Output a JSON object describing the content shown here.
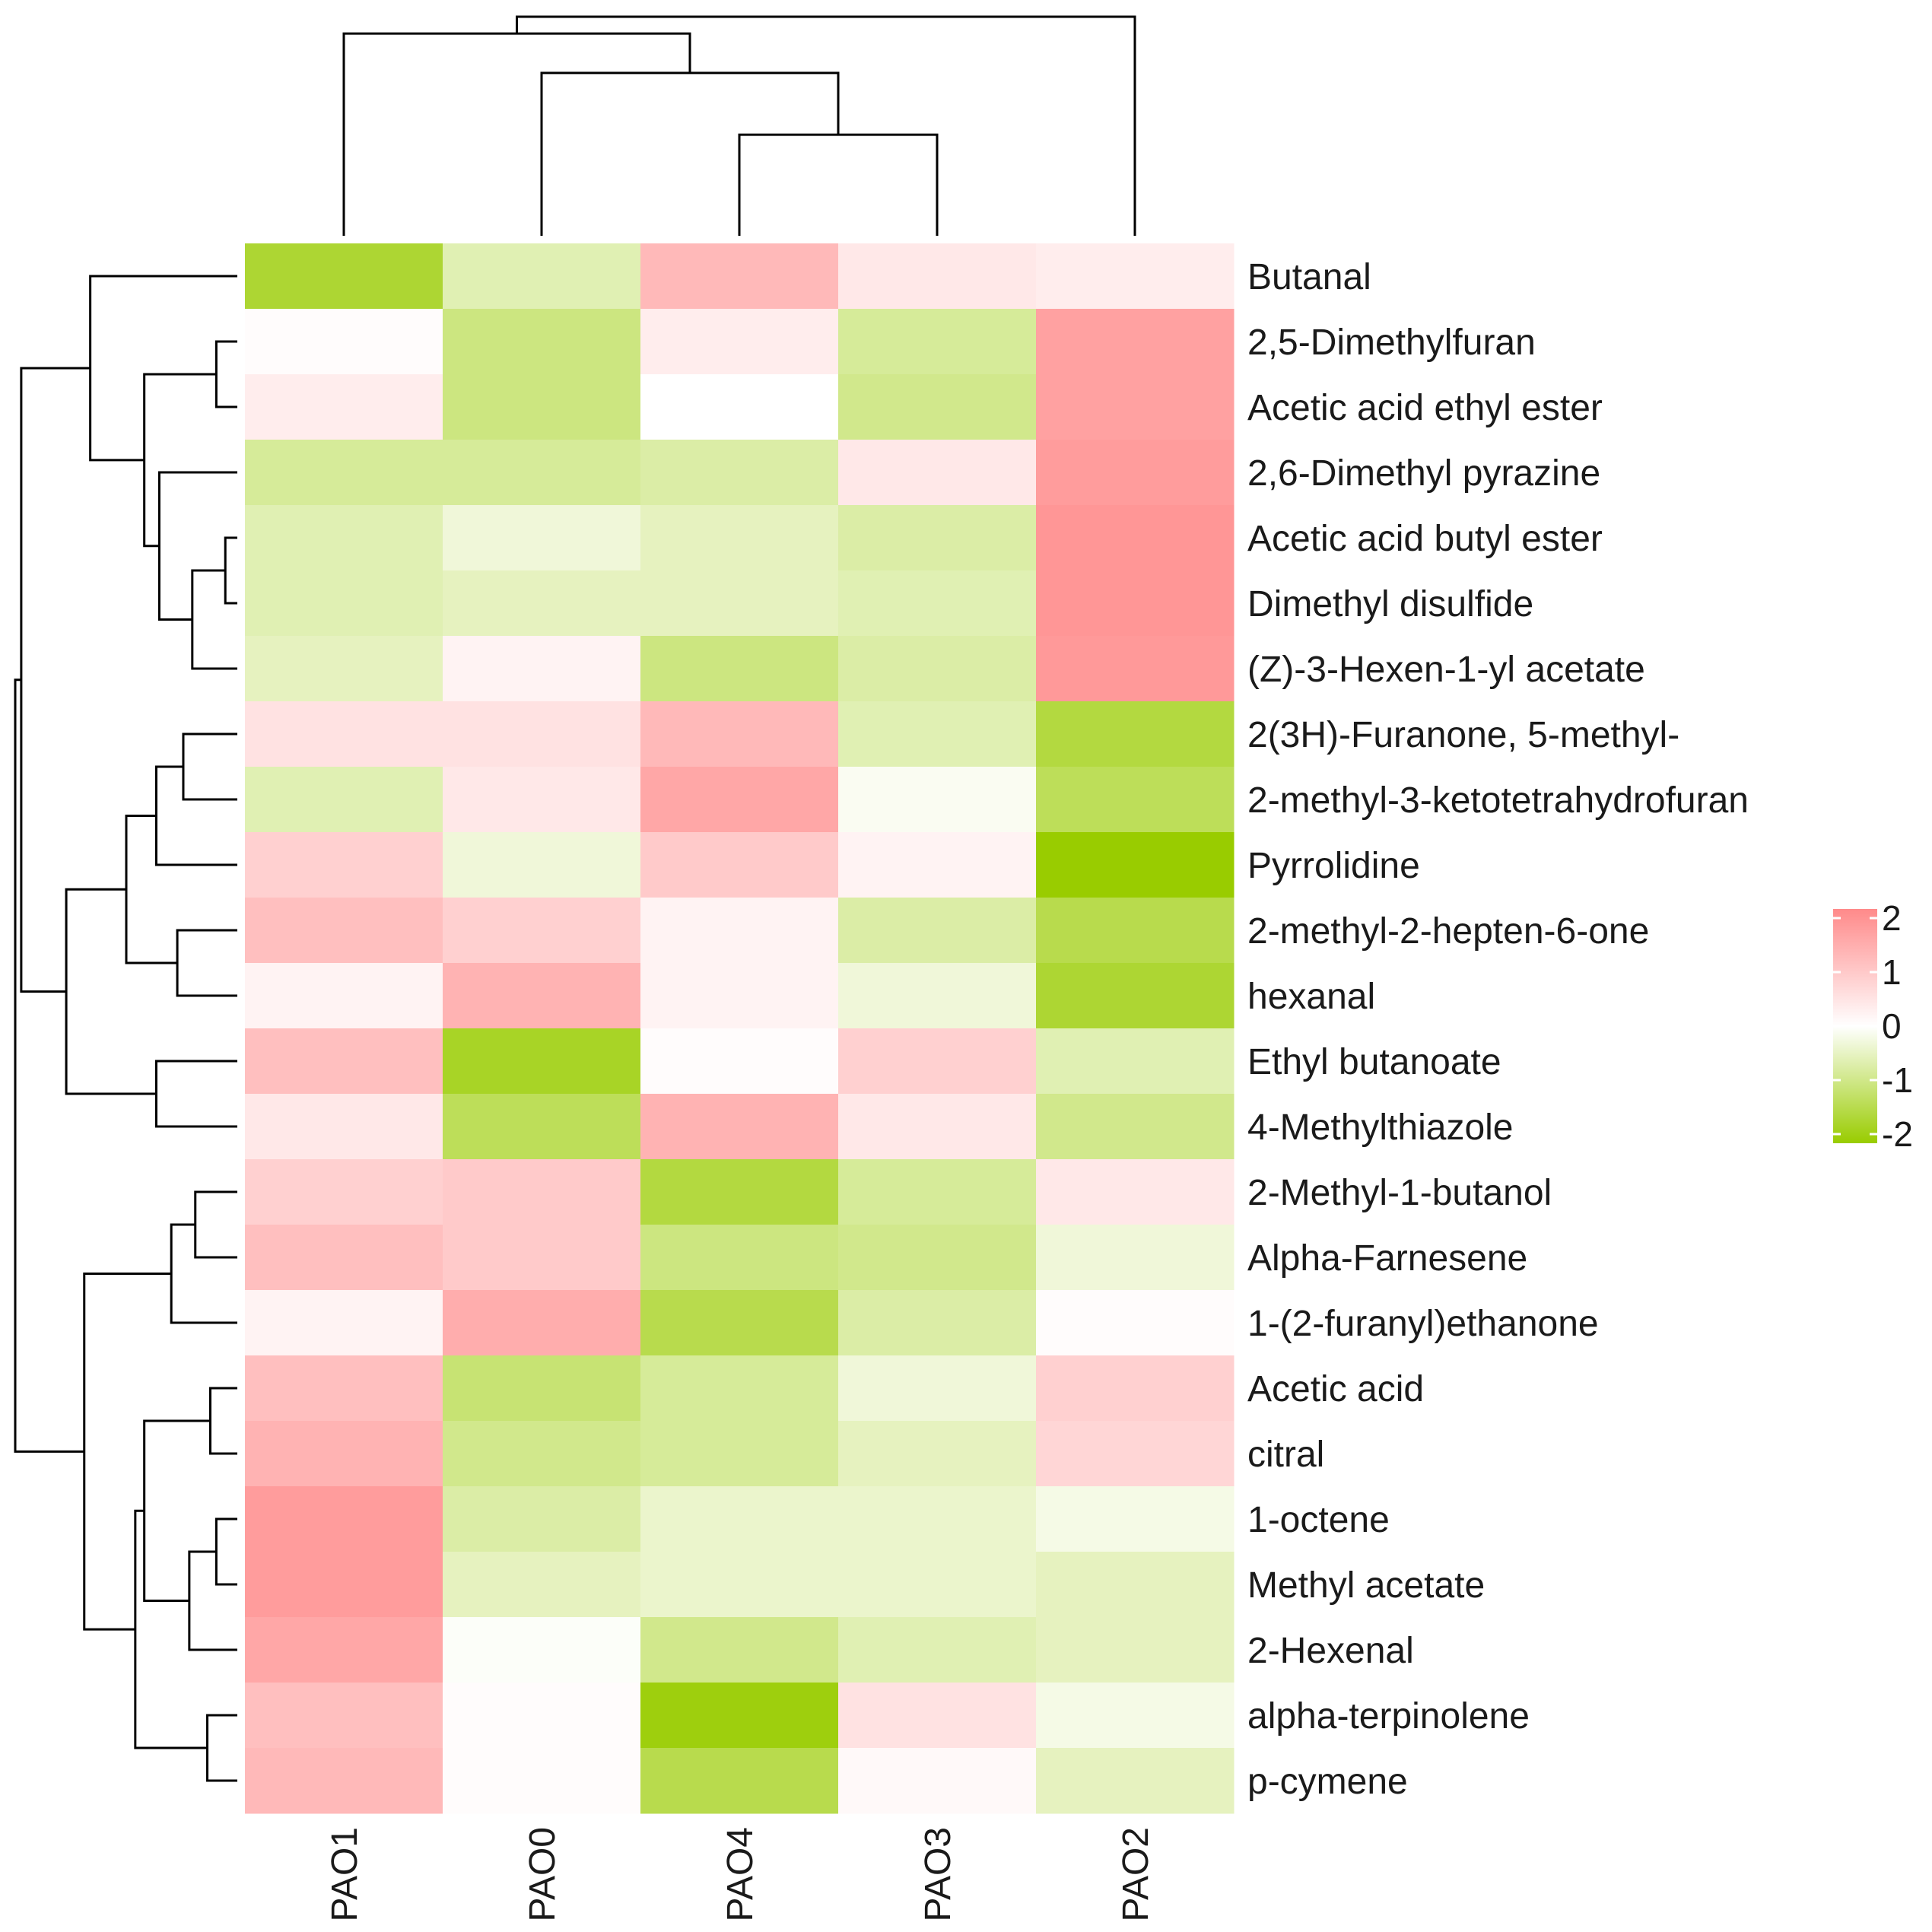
{
  "chart_data": {
    "type": "heatmap",
    "title": "",
    "columns": [
      "PAO1",
      "PAO0",
      "PAO4",
      "PAO3",
      "PAO2"
    ],
    "rows": [
      "Butanal",
      "2,5-Dimethylfuran",
      "Acetic acid ethyl ester",
      "2,6-Dimethyl pyrazine",
      "Acetic acid butyl ester",
      "Dimethyl disulfide",
      "(Z)-3-Hexen-1-yl acetate",
      "2(3H)-Furanone, 5-methyl-",
      "2-methyl-3-ketotetrahydrofuran",
      "Pyrrolidine",
      "2-methyl-2-hepten-6-one",
      "hexanal",
      "Ethyl butanoate",
      "4-Methylthiazole",
      "2-Methyl-1-butanol",
      "Alpha-Farnesene",
      "1-(2-furanyl)ethanone",
      "Acetic acid",
      "citral",
      "1-octene",
      "Methyl acetate",
      "2-Hexenal",
      "alpha-terpinolene",
      "p-cymene"
    ],
    "values": [
      [
        -1.6,
        -0.6,
        1.2,
        0.4,
        0.3
      ],
      [
        0.05,
        -1.0,
        0.3,
        -0.8,
        1.6
      ],
      [
        0.3,
        -1.0,
        0.0,
        -0.9,
        1.6
      ],
      [
        -0.8,
        -0.8,
        -0.7,
        0.4,
        1.7
      ],
      [
        -0.6,
        -0.3,
        -0.5,
        -0.7,
        1.8
      ],
      [
        -0.6,
        -0.5,
        -0.5,
        -0.6,
        1.8
      ],
      [
        -0.5,
        0.2,
        -1.0,
        -0.7,
        1.75
      ],
      [
        0.5,
        0.5,
        1.2,
        -0.6,
        -1.5
      ],
      [
        -0.6,
        0.4,
        1.5,
        -0.1,
        -1.3
      ],
      [
        0.8,
        -0.3,
        0.9,
        0.2,
        -2.0
      ],
      [
        1.1,
        0.8,
        0.2,
        -0.7,
        -1.4
      ],
      [
        0.2,
        1.3,
        0.2,
        -0.3,
        -1.6
      ],
      [
        1.1,
        -1.7,
        0.05,
        0.8,
        -0.6
      ],
      [
        0.4,
        -1.3,
        1.3,
        0.4,
        -0.9
      ],
      [
        0.8,
        0.9,
        -1.5,
        -0.8,
        0.4
      ],
      [
        1.1,
        0.9,
        -1.0,
        -0.9,
        -0.3
      ],
      [
        0.2,
        1.4,
        -1.4,
        -0.7,
        0.05
      ],
      [
        1.1,
        -1.1,
        -0.8,
        -0.3,
        0.8
      ],
      [
        1.3,
        -0.9,
        -0.8,
        -0.5,
        0.7
      ],
      [
        1.7,
        -0.7,
        -0.4,
        -0.4,
        -0.2
      ],
      [
        1.7,
        -0.5,
        -0.4,
        -0.4,
        -0.5
      ],
      [
        1.5,
        -0.05,
        -0.9,
        -0.6,
        -0.5
      ],
      [
        1.1,
        0.05,
        -1.9,
        0.5,
        -0.2
      ],
      [
        1.2,
        0.05,
        -1.4,
        0.1,
        -0.5
      ]
    ],
    "color_scale": {
      "min": -2,
      "max": 2,
      "low_color": "#99cc00",
      "mid_color": "#ffffff",
      "high_color": "#ff8a8a"
    },
    "legend": {
      "position": "right",
      "ticks": [
        {
          "value": 2,
          "label": "2"
        },
        {
          "value": 1,
          "label": "1"
        },
        {
          "value": 0,
          "label": "0"
        },
        {
          "value": -1,
          "label": "-1"
        },
        {
          "value": -2,
          "label": "-2"
        }
      ]
    },
    "column_dendrogram": {
      "merges": [
        {
          "a": "PAO4",
          "b": "PAO3",
          "height": 1.8
        },
        {
          "a": "PAO0",
          "b": "PAO4+PAO3",
          "height": 2.9
        },
        {
          "a": "PAO1",
          "b": "PAO0+PAO4+PAO3",
          "height": 3.6
        },
        {
          "a": "PAO1+PAO0+PAO4+PAO3",
          "b": "PAO2",
          "height": 3.9
        }
      ]
    },
    "row_dendrogram": {
      "tree": [
        [
          [
            "Butanal",
            [
              [
                "2,5-Dimethylfuran",
                "Acetic acid ethyl ester"
              ],
              [
                "2,6-Dimethyl pyrazine",
                [
                  [
                    "Acetic acid butyl ester",
                    "Dimethyl disulfide"
                  ],
                  "(Z)-3-Hexen-1-yl acetate"
                ]
              ]
            ]
          ],
          [
            [
              [
                [
                  "2(3H)-Furanone, 5-methyl-",
                  "2-methyl-3-ketotetrahydrofuran"
                ],
                "Pyrrolidine"
              ],
              [
                "2-methyl-2-hepten-6-one",
                "hexanal"
              ]
            ],
            [
              "Ethyl butanoate",
              "4-Methylthiazole"
            ]
          ]
        ],
        [
          [
            [
              "2-Methyl-1-butanol",
              "Alpha-Farnesene"
            ],
            "1-(2-furanyl)ethanone"
          ],
          [
            [
              [
                "Acetic acid",
                "citral"
              ],
              [
                [
                  "1-octene",
                  "Methyl acetate"
                ],
                "2-Hexenal"
              ]
            ],
            [
              "alpha-terpinolene",
              "p-cymene"
            ]
          ]
        ]
      ],
      "heights": {
        "2,5-Dimethylfuran+Acetic acid ethyl ester": 0.35,
        "Acetic acid butyl ester+Dimethyl disulfide": 0.2,
        "AAB+DMD+Z3H": 0.75,
        "DMP+AAB+DMD+Z3H": 1.3,
        "DMF+AAE+DMP+...": 1.55,
        "Butanal+...": 2.45,
        "F5M+MKT": 0.9,
        "F5M+MKT+Pyr": 1.35,
        "MHO+hexanal": 1.0,
        "F5M..hexanal": 1.85,
        "EB+MT": 1.35,
        "F5M..MT": 2.85,
        "top-upper": 3.6,
        "MB+AF": 0.7,
        "MB+AF+FE": 1.1,
        "AA+citral": 0.45,
        "oct+MA": 0.35,
        "oct+MA+Hex": 0.8,
        "AA..Hex": 1.55,
        "AT+pc": 0.5,
        "AA..pc": 1.7,
        "MB..pc": 2.55,
        "root": 3.7
      }
    }
  }
}
